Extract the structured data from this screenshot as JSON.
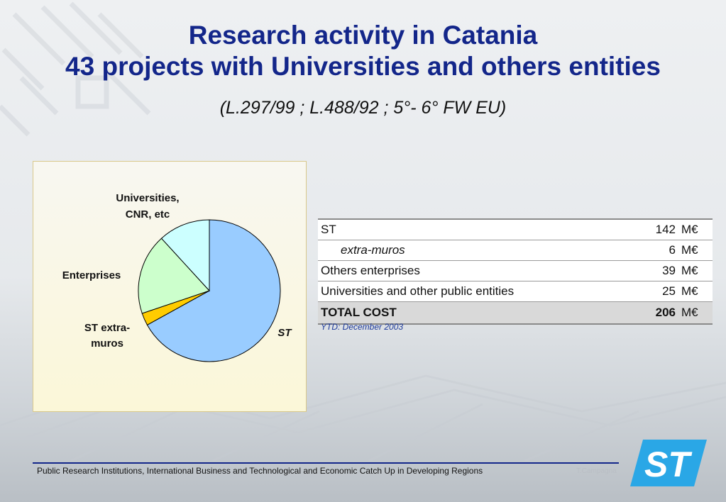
{
  "title_line1": "Research activity in Catania",
  "title_line2": "43 projects with Universities and others entities",
  "subtitle": "(L.297/99 ; L.488/92 ;  5°- 6° FW EU)",
  "chart_data": {
    "type": "pie",
    "slices": [
      {
        "label": "ST",
        "value": 142,
        "color": "#99ccff",
        "label_italic": true
      },
      {
        "label": "ST extra-muros",
        "value": 6,
        "color": "#ffcc00"
      },
      {
        "label": "Enterprises",
        "value": 39,
        "color": "#ccffcc"
      },
      {
        "label": "Universities, CNR, etc",
        "value": 25,
        "color": "#ccffff"
      }
    ],
    "start": "12 o'clock, clockwise"
  },
  "pie_labels": {
    "universities_line1": "Universities,",
    "universities_line2": "CNR, etc",
    "enterprises": "Enterprises",
    "st_extra_line1": "ST extra-",
    "st_extra_line2": "muros",
    "st": "ST"
  },
  "table": {
    "rows": [
      {
        "label": "ST",
        "value": "142",
        "unit": "M€"
      },
      {
        "label": "extra-muros",
        "value": "6",
        "unit": "M€"
      },
      {
        "label": "Others enterprises",
        "value": "39",
        "unit": "M€"
      },
      {
        "label": "Universities and other public entities",
        "value": "25",
        "unit": "M€"
      }
    ],
    "total": {
      "label": "TOTAL COST",
      "value": "206",
      "unit": "M€"
    }
  },
  "note": "YTD: December 2003",
  "footer": {
    "text": "Public Research Institutions, International Business and Technological and Economic Catch Up in Developing Regions",
    "author": "T.Campagna"
  },
  "logo_text": "ST",
  "colors": {
    "title": "#13268a",
    "logo": "#2aa7e6"
  }
}
